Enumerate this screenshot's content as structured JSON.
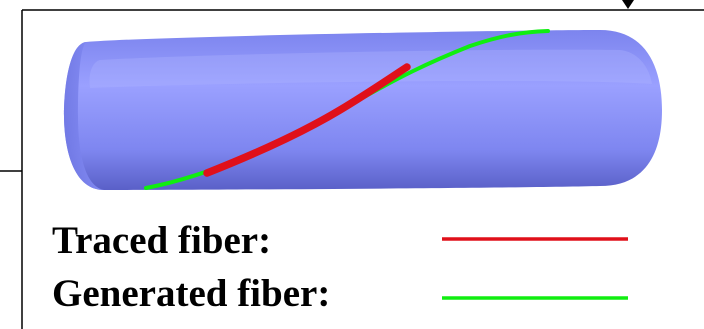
{
  "legend": {
    "traced_label": "Traced fiber:",
    "generated_label": "Generated fiber:"
  },
  "colors": {
    "cylinder": "#8088f2",
    "cylinder_highlight": "#9aa0ff",
    "cylinder_shadow": "#5a60c8",
    "traced_fiber": "#e0101a",
    "generated_fiber": "#10ee10",
    "frame": "#000000"
  }
}
